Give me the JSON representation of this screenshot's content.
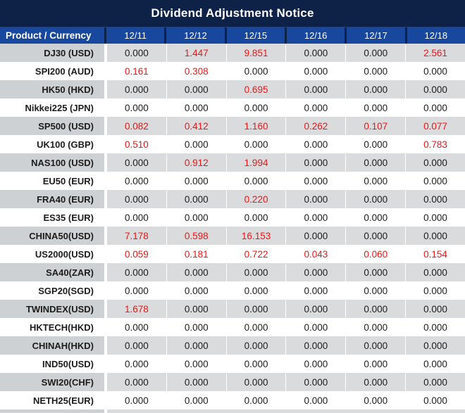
{
  "title_bar": {
    "title": "Dividend Adjustment Notice"
  },
  "colors": {
    "title_bg": "#0e2147",
    "header_bg": "#17489e",
    "row_gray_product": "#ced1d4",
    "row_gray_value": "#d9dbdd",
    "row_white": "#ffffff",
    "text_dark": "#1c1c1c",
    "text_red": "#f01414",
    "text_white": "#ffffff"
  },
  "table": {
    "product_header": "Product / Currency",
    "date_headers": [
      "12/11",
      "12/12",
      "12/15",
      "12/16",
      "12/17",
      "12/18"
    ],
    "rows": [
      {
        "product": "DJ30 (USD)",
        "values": [
          "0.000",
          "1.447",
          "9.851",
          "0.000",
          "0.000",
          "2.561"
        ],
        "red": [
          false,
          true,
          true,
          false,
          false,
          true
        ]
      },
      {
        "product": "SPI200 (AUD)",
        "values": [
          "0.161",
          "0.308",
          "0.000",
          "0.000",
          "0.000",
          "0.000"
        ],
        "red": [
          true,
          true,
          false,
          false,
          false,
          false
        ]
      },
      {
        "product": "HK50 (HKD)",
        "values": [
          "0.000",
          "0.000",
          "0.695",
          "0.000",
          "0.000",
          "0.000"
        ],
        "red": [
          false,
          false,
          true,
          false,
          false,
          false
        ]
      },
      {
        "product": "Nikkei225 (JPN)",
        "values": [
          "0.000",
          "0.000",
          "0.000",
          "0.000",
          "0.000",
          "0.000"
        ],
        "red": [
          false,
          false,
          false,
          false,
          false,
          false
        ]
      },
      {
        "product": "SP500 (USD)",
        "values": [
          "0.082",
          "0.412",
          "1.160",
          "0.262",
          "0.107",
          "0.077"
        ],
        "red": [
          true,
          true,
          true,
          true,
          true,
          true
        ]
      },
      {
        "product": "UK100 (GBP)",
        "values": [
          "0.510",
          "0.000",
          "0.000",
          "0.000",
          "0.000",
          "0.783"
        ],
        "red": [
          true,
          false,
          false,
          false,
          false,
          true
        ]
      },
      {
        "product": "NAS100 (USD)",
        "values": [
          "0.000",
          "0.912",
          "1.994",
          "0.000",
          "0.000",
          "0.000"
        ],
        "red": [
          false,
          true,
          true,
          false,
          false,
          false
        ]
      },
      {
        "product": "EU50 (EUR)",
        "values": [
          "0.000",
          "0.000",
          "0.000",
          "0.000",
          "0.000",
          "0.000"
        ],
        "red": [
          false,
          false,
          false,
          false,
          false,
          false
        ]
      },
      {
        "product": "FRA40 (EUR)",
        "values": [
          "0.000",
          "0.000",
          "0.220",
          "0.000",
          "0.000",
          "0.000"
        ],
        "red": [
          false,
          false,
          true,
          false,
          false,
          false
        ]
      },
      {
        "product": "ES35 (EUR)",
        "values": [
          "0.000",
          "0.000",
          "0.000",
          "0.000",
          "0.000",
          "0.000"
        ],
        "red": [
          false,
          false,
          false,
          false,
          false,
          false
        ]
      },
      {
        "product": "CHINA50(USD)",
        "values": [
          "7.178",
          "0.598",
          "16.153",
          "0.000",
          "0.000",
          "0.000"
        ],
        "red": [
          true,
          true,
          true,
          false,
          false,
          false
        ]
      },
      {
        "product": "US2000(USD)",
        "values": [
          "0.059",
          "0.181",
          "0.722",
          "0.043",
          "0.060",
          "0.154"
        ],
        "red": [
          true,
          true,
          true,
          true,
          true,
          true
        ]
      },
      {
        "product": "SA40(ZAR)",
        "values": [
          "0.000",
          "0.000",
          "0.000",
          "0.000",
          "0.000",
          "0.000"
        ],
        "red": [
          false,
          false,
          false,
          false,
          false,
          false
        ]
      },
      {
        "product": "SGP20(SGD)",
        "values": [
          "0.000",
          "0.000",
          "0.000",
          "0.000",
          "0.000",
          "0.000"
        ],
        "red": [
          false,
          false,
          false,
          false,
          false,
          false
        ]
      },
      {
        "product": "TWINDEX(USD)",
        "values": [
          "1.678",
          "0.000",
          "0.000",
          "0.000",
          "0.000",
          "0.000"
        ],
        "red": [
          true,
          false,
          false,
          false,
          false,
          false
        ]
      },
      {
        "product": "HKTECH(HKD)",
        "values": [
          "0.000",
          "0.000",
          "0.000",
          "0.000",
          "0.000",
          "0.000"
        ],
        "red": [
          false,
          false,
          false,
          false,
          false,
          false
        ]
      },
      {
        "product": "CHINAH(HKD)",
        "values": [
          "0.000",
          "0.000",
          "0.000",
          "0.000",
          "0.000",
          "0.000"
        ],
        "red": [
          false,
          false,
          false,
          false,
          false,
          false
        ]
      },
      {
        "product": "IND50(USD)",
        "values": [
          "0.000",
          "0.000",
          "0.000",
          "0.000",
          "0.000",
          "0.000"
        ],
        "red": [
          false,
          false,
          false,
          false,
          false,
          false
        ]
      },
      {
        "product": "SWI20(CHF)",
        "values": [
          "0.000",
          "0.000",
          "0.000",
          "0.000",
          "0.000",
          "0.000"
        ],
        "red": [
          false,
          false,
          false,
          false,
          false,
          false
        ]
      },
      {
        "product": "NETH25(EUR)",
        "values": [
          "0.000",
          "0.000",
          "0.000",
          "0.000",
          "0.000",
          "0.000"
        ],
        "red": [
          false,
          false,
          false,
          false,
          false,
          false
        ]
      }
    ]
  }
}
